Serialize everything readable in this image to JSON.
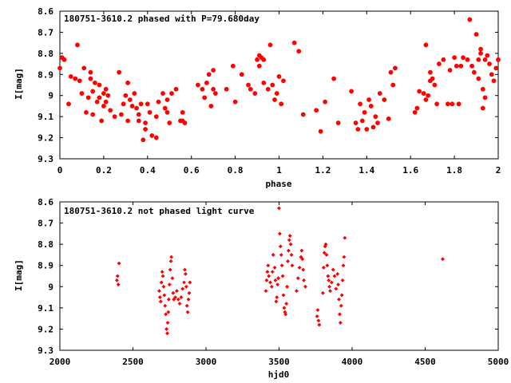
{
  "chart_data": [
    {
      "type": "scatter",
      "title": "180751-3610.2 phased with P=79.680day",
      "xlabel": "phase",
      "ylabel": "I[mag]",
      "xlim": [
        0,
        2
      ],
      "ylim": [
        8.6,
        9.3
      ],
      "y_inverted": true,
      "xticks": [
        "0",
        "0.2",
        "0.4",
        "0.6",
        "0.8",
        "1",
        "1.2",
        "1.4",
        "1.6",
        "1.8",
        "2"
      ],
      "yticks": [
        "8.6",
        "8.7",
        "8.8",
        "8.9",
        "9",
        "9.1",
        "9.2",
        "9.3"
      ],
      "grid": false,
      "marker_color": "#ff0000",
      "marker": "filled-circle",
      "points": [
        [
          0.0,
          8.87
        ],
        [
          0.01,
          8.82
        ],
        [
          0.02,
          8.83
        ],
        [
          0.04,
          9.04
        ],
        [
          0.05,
          8.91
        ],
        [
          0.07,
          8.92
        ],
        [
          0.08,
          8.76
        ],
        [
          0.09,
          8.93
        ],
        [
          0.1,
          8.99
        ],
        [
          0.11,
          8.87
        ],
        [
          0.12,
          9.08
        ],
        [
          0.13,
          9.01
        ],
        [
          0.14,
          8.89
        ],
        [
          0.14,
          8.92
        ],
        [
          0.15,
          8.98
        ],
        [
          0.15,
          9.09
        ],
        [
          0.16,
          8.94
        ],
        [
          0.17,
          9.03
        ],
        [
          0.18,
          8.95
        ],
        [
          0.18,
          9.01
        ],
        [
          0.19,
          9.12
        ],
        [
          0.2,
          8.99
        ],
        [
          0.2,
          9.05
        ],
        [
          0.21,
          8.97
        ],
        [
          0.21,
          9.03
        ],
        [
          0.22,
          9.0
        ],
        [
          0.23,
          9.07
        ],
        [
          0.25,
          9.1
        ],
        [
          0.27,
          8.89
        ],
        [
          0.28,
          9.09
        ],
        [
          0.29,
          9.04
        ],
        [
          0.3,
          9.0
        ],
        [
          0.31,
          9.12
        ],
        [
          0.31,
          8.94
        ],
        [
          0.32,
          9.02
        ],
        [
          0.33,
          9.05
        ],
        [
          0.34,
          8.99
        ],
        [
          0.35,
          9.06
        ],
        [
          0.36,
          9.09
        ],
        [
          0.36,
          9.12
        ],
        [
          0.37,
          9.04
        ],
        [
          0.38,
          9.21
        ],
        [
          0.39,
          9.13
        ],
        [
          0.39,
          9.16
        ],
        [
          0.4,
          9.04
        ],
        [
          0.41,
          9.08
        ],
        [
          0.42,
          9.19
        ],
        [
          0.44,
          9.2
        ],
        [
          0.44,
          9.1
        ],
        [
          0.45,
          9.03
        ],
        [
          0.47,
          8.99
        ],
        [
          0.48,
          9.06
        ],
        [
          0.49,
          9.08
        ],
        [
          0.49,
          9.02
        ],
        [
          0.5,
          9.13
        ],
        [
          0.51,
          8.99
        ],
        [
          0.53,
          8.97
        ],
        [
          0.55,
          9.12
        ],
        [
          0.56,
          9.12
        ],
        [
          0.56,
          9.08
        ],
        [
          0.57,
          9.13
        ],
        [
          0.63,
          8.95
        ],
        [
          0.65,
          8.97
        ],
        [
          0.66,
          9.01
        ],
        [
          0.67,
          8.94
        ],
        [
          0.68,
          8.9
        ],
        [
          0.69,
          9.05
        ],
        [
          0.7,
          8.88
        ],
        [
          0.7,
          8.97
        ],
        [
          0.71,
          8.99
        ],
        [
          0.76,
          8.97
        ],
        [
          0.79,
          8.86
        ],
        [
          0.8,
          9.03
        ],
        [
          0.83,
          8.9
        ],
        [
          0.86,
          8.95
        ],
        [
          0.87,
          8.97
        ],
        [
          0.89,
          8.99
        ],
        [
          0.9,
          8.83
        ],
        [
          0.91,
          8.81
        ],
        [
          0.91,
          8.86
        ],
        [
          0.92,
          8.82
        ],
        [
          0.93,
          8.83
        ],
        [
          0.93,
          8.94
        ],
        [
          0.95,
          8.97
        ],
        [
          0.96,
          8.76
        ],
        [
          0.97,
          8.95
        ],
        [
          0.98,
          9.02
        ],
        [
          0.99,
          8.99
        ],
        [
          1.0,
          8.91
        ],
        [
          1.01,
          9.04
        ],
        [
          1.02,
          8.93
        ],
        [
          1.07,
          8.75
        ],
        [
          1.09,
          8.79
        ],
        [
          1.11,
          9.09
        ],
        [
          1.17,
          9.07
        ],
        [
          1.19,
          9.17
        ],
        [
          1.21,
          9.03
        ],
        [
          1.25,
          8.92
        ],
        [
          1.27,
          9.13
        ],
        [
          1.33,
          8.98
        ],
        [
          1.35,
          9.13
        ],
        [
          1.36,
          9.16
        ],
        [
          1.37,
          9.04
        ],
        [
          1.38,
          9.12
        ],
        [
          1.39,
          9.08
        ],
        [
          1.4,
          9.16
        ],
        [
          1.41,
          9.02
        ],
        [
          1.42,
          9.05
        ],
        [
          1.43,
          9.15
        ],
        [
          1.44,
          9.1
        ],
        [
          1.45,
          9.13
        ],
        [
          1.46,
          8.99
        ],
        [
          1.48,
          9.02
        ],
        [
          1.5,
          9.11
        ],
        [
          1.51,
          8.89
        ],
        [
          1.52,
          8.95
        ],
        [
          1.53,
          8.87
        ],
        [
          1.62,
          9.08
        ],
        [
          1.63,
          9.06
        ],
        [
          1.64,
          8.98
        ],
        [
          1.66,
          8.99
        ],
        [
          1.67,
          8.76
        ],
        [
          1.67,
          9.02
        ],
        [
          1.68,
          9.0
        ],
        [
          1.69,
          8.93
        ],
        [
          1.69,
          8.89
        ],
        [
          1.7,
          8.92
        ],
        [
          1.71,
          8.95
        ],
        [
          1.72,
          9.04
        ],
        [
          1.73,
          8.85
        ],
        [
          1.75,
          8.83
        ],
        [
          1.77,
          9.04
        ],
        [
          1.78,
          8.88
        ],
        [
          1.79,
          9.04
        ],
        [
          1.8,
          8.82
        ],
        [
          1.81,
          8.86
        ],
        [
          1.82,
          9.04
        ],
        [
          1.83,
          8.86
        ],
        [
          1.84,
          8.82
        ],
        [
          1.86,
          8.83
        ],
        [
          1.87,
          8.64
        ],
        [
          1.88,
          8.86
        ],
        [
          1.89,
          8.89
        ],
        [
          1.9,
          8.71
        ],
        [
          1.91,
          8.83
        ],
        [
          1.91,
          8.92
        ],
        [
          1.92,
          8.8
        ],
        [
          1.92,
          8.78
        ],
        [
          1.93,
          9.06
        ],
        [
          1.93,
          8.97
        ],
        [
          1.94,
          8.83
        ],
        [
          1.94,
          9.01
        ],
        [
          1.95,
          8.81
        ],
        [
          1.96,
          8.85
        ],
        [
          1.97,
          8.9
        ],
        [
          1.98,
          8.93
        ],
        [
          1.99,
          8.87
        ],
        [
          2.0,
          8.83
        ]
      ]
    },
    {
      "type": "scatter",
      "title": "180751-3610.2 not phased light curve",
      "xlabel": "hjd0",
      "ylabel": "I[mag]",
      "xlim": [
        2000,
        5000
      ],
      "ylim": [
        8.6,
        9.3
      ],
      "y_inverted": true,
      "xticks": [
        "2000",
        "2500",
        "3000",
        "3500",
        "4000",
        "4500",
        "5000"
      ],
      "yticks": [
        "8.6",
        "8.7",
        "8.8",
        "8.9",
        "9",
        "9.1",
        "9.2",
        "9.3"
      ],
      "grid": false,
      "marker_color": "#ff0000",
      "marker": "small-diamond",
      "points": [
        [
          2390,
          8.97
        ],
        [
          2395,
          8.95
        ],
        [
          2400,
          8.99
        ],
        [
          2405,
          8.89
        ],
        [
          2680,
          9.02
        ],
        [
          2685,
          9.05
        ],
        [
          2690,
          9.07
        ],
        [
          2695,
          8.98
        ],
        [
          2700,
          8.93
        ],
        [
          2705,
          8.95
        ],
        [
          2710,
          9.0
        ],
        [
          2715,
          9.04
        ],
        [
          2720,
          9.09
        ],
        [
          2725,
          9.13
        ],
        [
          2730,
          9.2
        ],
        [
          2735,
          9.22
        ],
        [
          2738,
          9.17
        ],
        [
          2742,
          9.12
        ],
        [
          2745,
          9.06
        ],
        [
          2750,
          8.99
        ],
        [
          2755,
          8.92
        ],
        [
          2760,
          8.88
        ],
        [
          2763,
          8.86
        ],
        [
          2770,
          8.96
        ],
        [
          2775,
          9.03
        ],
        [
          2780,
          9.06
        ],
        [
          2790,
          9.05
        ],
        [
          2800,
          9.02
        ],
        [
          2810,
          9.06
        ],
        [
          2820,
          9.08
        ],
        [
          2830,
          9.05
        ],
        [
          2840,
          9.01
        ],
        [
          2850,
          8.98
        ],
        [
          2855,
          8.92
        ],
        [
          2860,
          8.94
        ],
        [
          2865,
          9.0
        ],
        [
          2870,
          9.09
        ],
        [
          2875,
          9.12
        ],
        [
          2880,
          9.06
        ],
        [
          2885,
          9.03
        ],
        [
          2890,
          8.98
        ],
        [
          3410,
          9.02
        ],
        [
          3415,
          8.97
        ],
        [
          3420,
          8.93
        ],
        [
          3425,
          8.9
        ],
        [
          3430,
          8.95
        ],
        [
          3440,
          8.98
        ],
        [
          3450,
          9.0
        ],
        [
          3455,
          8.93
        ],
        [
          3460,
          8.85
        ],
        [
          3470,
          8.91
        ],
        [
          3475,
          8.97
        ],
        [
          3480,
          9.07
        ],
        [
          3485,
          9.05
        ],
        [
          3490,
          8.99
        ],
        [
          3495,
          8.96
        ],
        [
          3500,
          8.63
        ],
        [
          3505,
          8.75
        ],
        [
          3510,
          8.81
        ],
        [
          3515,
          8.85
        ],
        [
          3520,
          8.9
        ],
        [
          3525,
          8.95
        ],
        [
          3530,
          9.04
        ],
        [
          3535,
          9.1
        ],
        [
          3540,
          9.12
        ],
        [
          3545,
          9.13
        ],
        [
          3550,
          9.08
        ],
        [
          3555,
          9.0
        ],
        [
          3560,
          8.88
        ],
        [
          3565,
          8.83
        ],
        [
          3570,
          8.78
        ],
        [
          3575,
          8.76
        ],
        [
          3580,
          8.8
        ],
        [
          3585,
          8.85
        ],
        [
          3590,
          8.9
        ],
        [
          3620,
          9.02
        ],
        [
          3630,
          8.96
        ],
        [
          3640,
          8.91
        ],
        [
          3650,
          8.86
        ],
        [
          3655,
          8.83
        ],
        [
          3660,
          8.87
        ],
        [
          3665,
          8.92
        ],
        [
          3670,
          8.97
        ],
        [
          3680,
          9.0
        ],
        [
          3760,
          9.14
        ],
        [
          3765,
          9.11
        ],
        [
          3770,
          9.16
        ],
        [
          3775,
          9.18
        ],
        [
          3800,
          9.03
        ],
        [
          3805,
          8.91
        ],
        [
          3810,
          8.84
        ],
        [
          3815,
          8.81
        ],
        [
          3820,
          8.8
        ],
        [
          3825,
          8.85
        ],
        [
          3830,
          8.9
        ],
        [
          3835,
          8.95
        ],
        [
          3840,
          8.97
        ],
        [
          3845,
          9.0
        ],
        [
          3850,
          9.02
        ],
        [
          3860,
          8.98
        ],
        [
          3870,
          8.92
        ],
        [
          3880,
          8.95
        ],
        [
          3890,
          9.01
        ],
        [
          3900,
          8.94
        ],
        [
          3905,
          8.99
        ],
        [
          3910,
          9.06
        ],
        [
          3915,
          9.13
        ],
        [
          3920,
          9.17
        ],
        [
          3925,
          9.09
        ],
        [
          3930,
          9.04
        ],
        [
          3935,
          8.97
        ],
        [
          3940,
          8.9
        ],
        [
          3945,
          8.86
        ],
        [
          3950,
          8.77
        ],
        [
          4620,
          8.87
        ]
      ]
    }
  ]
}
